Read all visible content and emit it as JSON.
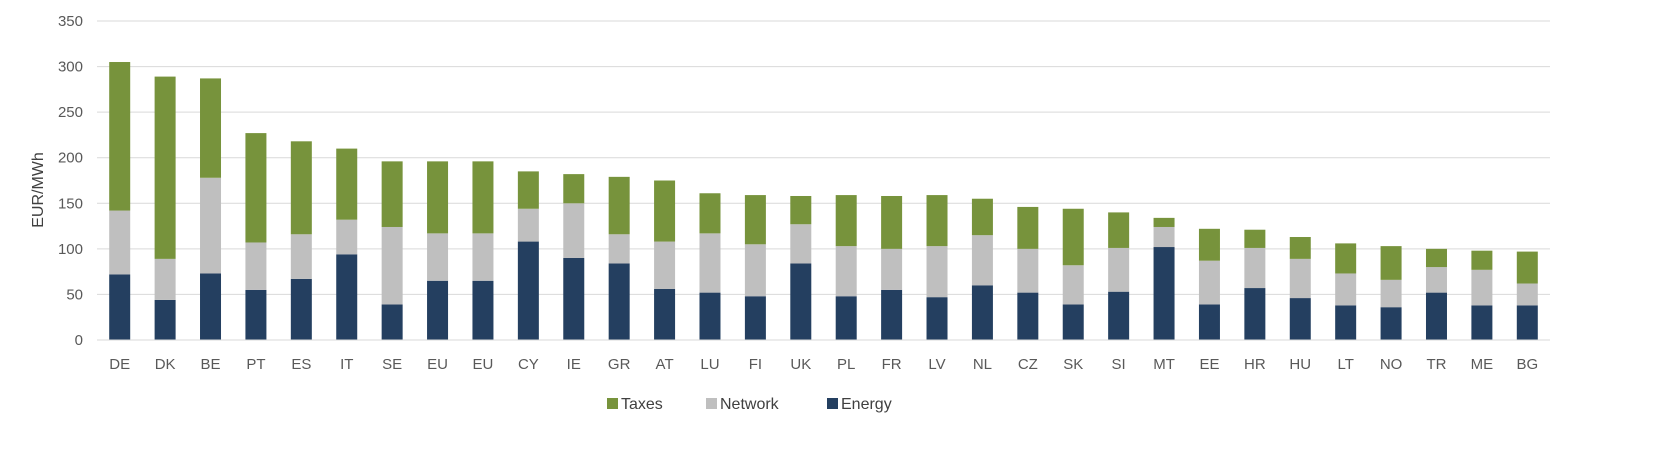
{
  "chart_data": {
    "type": "bar",
    "stacked": true,
    "title": "",
    "xlabel": "",
    "ylabel": "EUR/MWh",
    "ylim": [
      0,
      350
    ],
    "yticks": [
      0,
      50,
      100,
      150,
      200,
      250,
      300,
      350
    ],
    "grid": true,
    "legend_position": "bottom",
    "categories": [
      "DE",
      "DK",
      "BE",
      "PT",
      "ES",
      "IT",
      "SE",
      "EU",
      "EU",
      "CY",
      "IE",
      "GR",
      "AT",
      "LU",
      "FI",
      "UK",
      "PL",
      "FR",
      "LV",
      "NL",
      "CZ",
      "SK",
      "SI",
      "MT",
      "EE",
      "HR",
      "HU",
      "LT",
      "NO",
      "TR",
      "ME",
      "BG"
    ],
    "series": [
      {
        "name": "Energy",
        "color": "#243f60",
        "values": [
          72,
          44,
          73,
          55,
          67,
          94,
          39,
          65,
          65,
          108,
          90,
          84,
          56,
          52,
          48,
          84,
          48,
          55,
          47,
          60,
          52,
          39,
          53,
          102,
          39,
          57,
          46,
          38,
          36,
          52,
          38,
          38
        ]
      },
      {
        "name": "Network",
        "color": "#bfbfbf",
        "values": [
          70,
          45,
          105,
          52,
          49,
          38,
          85,
          52,
          52,
          36,
          60,
          32,
          52,
          65,
          57,
          43,
          55,
          45,
          56,
          55,
          48,
          43,
          48,
          22,
          48,
          44,
          43,
          35,
          30,
          28,
          39,
          24
        ]
      },
      {
        "name": "Taxes",
        "color": "#77933c",
        "values": [
          163,
          200,
          109,
          120,
          102,
          78,
          72,
          79,
          79,
          41,
          32,
          63,
          67,
          44,
          54,
          31,
          56,
          58,
          56,
          40,
          46,
          62,
          39,
          10,
          35,
          20,
          24,
          33,
          37,
          20,
          21,
          35
        ]
      }
    ],
    "legend": [
      "Taxes",
      "Network",
      "Energy"
    ]
  }
}
